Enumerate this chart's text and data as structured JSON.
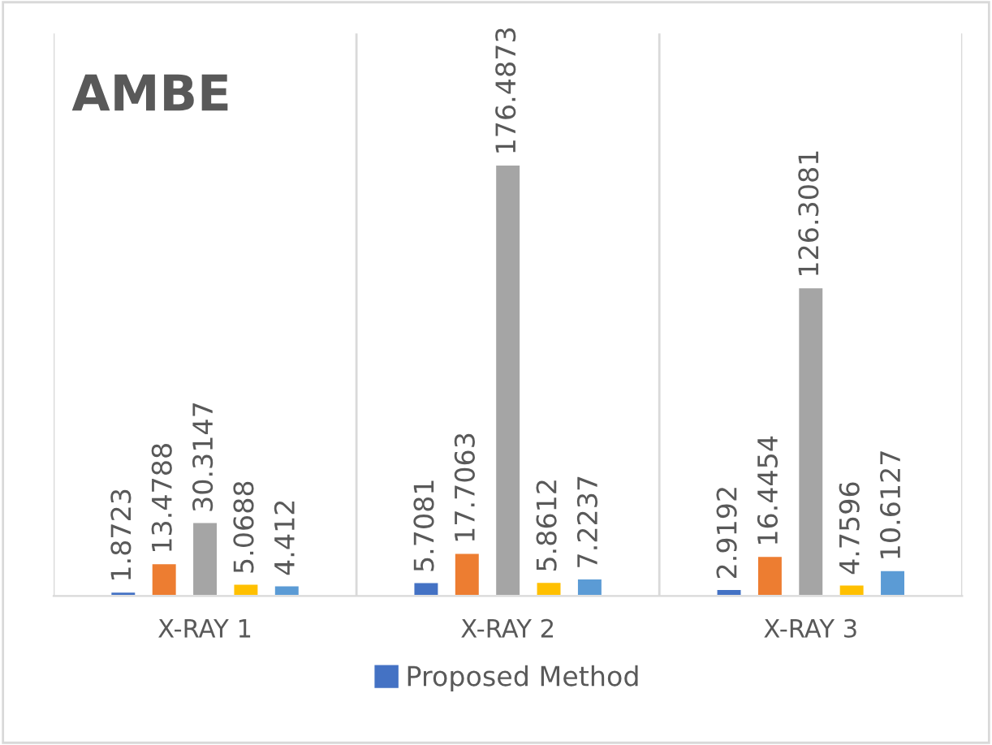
{
  "chart_data": {
    "type": "bar",
    "title": "AMBE",
    "categories": [
      "X-RAY 1",
      "X-RAY 2",
      "X-RAY 3"
    ],
    "series": [
      {
        "name": "Proposed Method",
        "color": "#4472c4",
        "values": [
          1.8723,
          5.7081,
          2.9192
        ]
      },
      {
        "color": "#ed7d31",
        "values": [
          13.4788,
          17.7063,
          16.4454
        ]
      },
      {
        "color": "#a5a5a5",
        "values": [
          30.3147,
          176.4873,
          126.3081
        ]
      },
      {
        "color": "#ffc000",
        "values": [
          5.0688,
          5.8612,
          4.7596
        ]
      },
      {
        "color": "#5b9bd5",
        "values": [
          4.412,
          7.2237,
          10.6127
        ]
      }
    ],
    "ylim": [
      0,
      230
    ],
    "tick_labels": "x",
    "data_labels": true,
    "grid": "x",
    "legend": "bottom"
  }
}
